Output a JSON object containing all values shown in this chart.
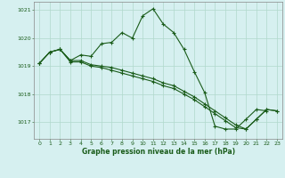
{
  "title": "Graphe pression niveau de la mer (hPa)",
  "bg_color": "#d6f0f0",
  "grid_color": "#b0d8cc",
  "line_color": "#1a5c1a",
  "xlim": [
    -0.5,
    23.5
  ],
  "ylim": [
    1016.4,
    1021.3
  ],
  "yticks": [
    1017,
    1018,
    1019,
    1020,
    1021
  ],
  "xticks": [
    0,
    1,
    2,
    3,
    4,
    5,
    6,
    7,
    8,
    9,
    10,
    11,
    12,
    13,
    14,
    15,
    16,
    17,
    18,
    19,
    20,
    21,
    22,
    23
  ],
  "xtick_labels": [
    "0",
    "1",
    "2",
    "3",
    "4",
    "5",
    "6",
    "7",
    "8",
    "9",
    "10",
    "11",
    "12",
    "13",
    "14",
    "15",
    "16",
    "17",
    "18",
    "19",
    "20",
    "21",
    "22",
    "23"
  ],
  "series": [
    {
      "x": [
        0,
        1,
        2,
        3,
        4,
        5,
        6,
        7,
        8,
        9,
        10,
        11,
        12,
        13,
        14,
        15,
        16,
        17,
        18,
        19,
        20,
        21,
        22
      ],
      "y": [
        1019.1,
        1019.5,
        1019.6,
        1019.2,
        1019.4,
        1019.35,
        1019.8,
        1019.85,
        1020.2,
        1020.0,
        1020.8,
        1021.05,
        1020.5,
        1020.2,
        1019.6,
        1018.8,
        1018.05,
        1016.85,
        1016.75,
        1016.75,
        1017.1,
        1017.45,
        1017.4
      ]
    },
    {
      "x": [
        0,
        1,
        2,
        3,
        4,
        5,
        6,
        7,
        8,
        9,
        10,
        11,
        12,
        13,
        14,
        15,
        16,
        17,
        18,
        19,
        20,
        21,
        22,
        23
      ],
      "y": [
        1019.1,
        1019.5,
        1019.6,
        1019.2,
        1019.2,
        1019.05,
        1019.0,
        1018.95,
        1018.85,
        1018.75,
        1018.65,
        1018.55,
        1018.4,
        1018.3,
        1018.1,
        1017.9,
        1017.65,
        1017.4,
        1017.15,
        1016.9,
        1016.75,
        1017.1,
        1017.45,
        1017.4
      ]
    },
    {
      "x": [
        0,
        1,
        2,
        3,
        4,
        5,
        6,
        7,
        8,
        9,
        10,
        11,
        12,
        13,
        14,
        15,
        16,
        17,
        18,
        19,
        20,
        21,
        22,
        23
      ],
      "y": [
        1019.1,
        1019.5,
        1019.6,
        1019.15,
        1019.15,
        1019.0,
        1018.95,
        1018.85,
        1018.75,
        1018.65,
        1018.55,
        1018.45,
        1018.3,
        1018.2,
        1018.0,
        1017.8,
        1017.55,
        1017.3,
        1017.05,
        1016.8,
        1016.75,
        1017.1,
        1017.45,
        1017.4
      ]
    }
  ]
}
